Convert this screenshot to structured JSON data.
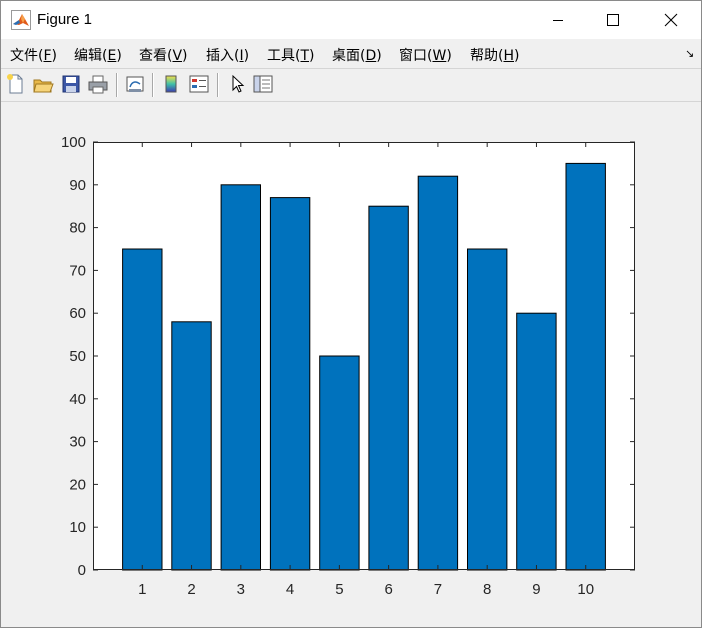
{
  "window": {
    "title": "Figure 1"
  },
  "menu": {
    "items": [
      {
        "label": "文件(",
        "key": "F",
        "close": ")"
      },
      {
        "label": "编辑(",
        "key": "E",
        "close": ")"
      },
      {
        "label": "查看(",
        "key": "V",
        "close": ")"
      },
      {
        "label": "插入(",
        "key": "I",
        "close": ")"
      },
      {
        "label": "工具(",
        "key": "T",
        "close": ")"
      },
      {
        "label": "桌面(",
        "key": "D",
        "close": ")"
      },
      {
        "label": "窗口(",
        "key": "W",
        "close": ")"
      },
      {
        "label": "帮助(",
        "key": "H",
        "close": ")"
      }
    ]
  },
  "toolbar": {
    "buttons": [
      {
        "name": "new-figure-icon"
      },
      {
        "name": "open-file-icon"
      },
      {
        "name": "save-icon"
      },
      {
        "name": "print-icon"
      },
      {
        "name": "link-plot-icon"
      },
      {
        "name": "insert-colorbar-icon"
      },
      {
        "name": "insert-legend-icon"
      },
      {
        "name": "edit-plot-pointer-icon"
      },
      {
        "name": "property-inspector-icon"
      }
    ]
  },
  "colors": {
    "bar_fill": "#0072BD",
    "bar_edge": "#000000",
    "axes_bg": "#ffffff",
    "figure_bg": "#f0f0f0"
  },
  "chart_data": {
    "type": "bar",
    "categories": [
      "1",
      "2",
      "3",
      "4",
      "5",
      "6",
      "7",
      "8",
      "9",
      "10"
    ],
    "values": [
      75,
      58,
      90,
      87,
      50,
      85,
      92,
      75,
      60,
      95
    ],
    "ylim": [
      0,
      100
    ],
    "yticks": [
      0,
      10,
      20,
      30,
      40,
      50,
      60,
      70,
      80,
      90,
      100
    ],
    "title": "",
    "xlabel": "",
    "ylabel": "",
    "grid": false,
    "legend": "none"
  }
}
